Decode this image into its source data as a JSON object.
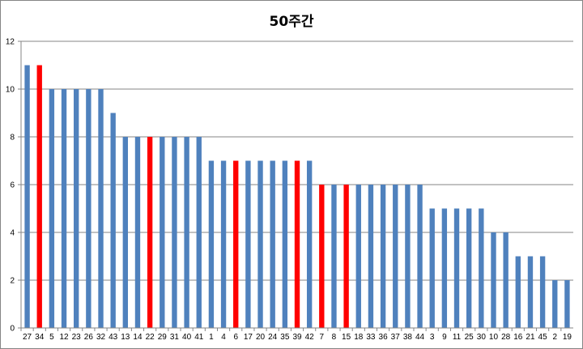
{
  "chart_data": {
    "type": "bar",
    "title": "50주간",
    "xlabel": "",
    "ylabel": "",
    "ylim": [
      0,
      12
    ],
    "yticks": [
      0,
      2,
      4,
      6,
      8,
      10,
      12
    ],
    "grid": true,
    "legend": "none",
    "categories": [
      "27",
      "34",
      "5",
      "12",
      "23",
      "26",
      "32",
      "43",
      "13",
      "14",
      "22",
      "29",
      "31",
      "40",
      "41",
      "1",
      "4",
      "6",
      "17",
      "20",
      "24",
      "35",
      "39",
      "42",
      "7",
      "8",
      "15",
      "18",
      "33",
      "36",
      "37",
      "38",
      "44",
      "3",
      "9",
      "11",
      "25",
      "30",
      "10",
      "28",
      "16",
      "21",
      "45",
      "2",
      "19"
    ],
    "values": [
      11,
      11,
      10,
      10,
      10,
      10,
      10,
      9,
      8,
      8,
      8,
      8,
      8,
      8,
      8,
      7,
      7,
      7,
      7,
      7,
      7,
      7,
      7,
      7,
      6,
      6,
      6,
      6,
      6,
      6,
      6,
      6,
      6,
      5,
      5,
      5,
      5,
      5,
      4,
      4,
      3,
      3,
      3,
      2,
      2
    ],
    "highlighted": [
      "34",
      "22",
      "6",
      "39",
      "7",
      "15"
    ],
    "colors": {
      "default": "#4F81BD",
      "highlight": "#FF0000"
    }
  }
}
